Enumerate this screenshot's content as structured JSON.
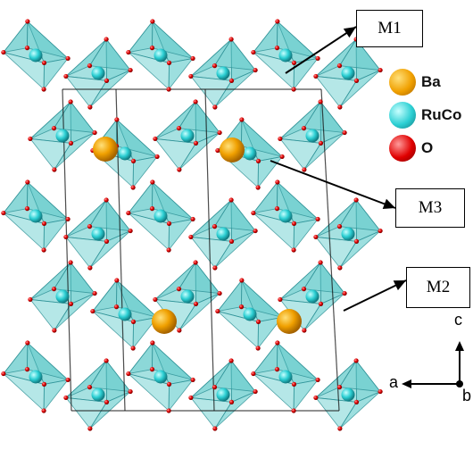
{
  "labels": {
    "m1": "M1",
    "m2": "M2",
    "m3": "M3"
  },
  "legend": [
    {
      "label": "Ba",
      "color": "#f0a000",
      "icon": "ba-atom-ball"
    },
    {
      "label": "RuCo",
      "color": "#27c9cf",
      "icon": "ruco-atom-ball"
    },
    {
      "label": "O",
      "color": "#e00000",
      "icon": "oxygen-atom-ball"
    }
  ],
  "axes": {
    "a": "a",
    "b": "b",
    "c": "c"
  },
  "colors": {
    "octahedron_fill": "#5cc9c9",
    "octahedron_edge": "#2a8f93",
    "oxygen": "#d41111",
    "barium": "#f0a000",
    "ruco": "#27c9cf",
    "cell_edge": "#111111"
  }
}
